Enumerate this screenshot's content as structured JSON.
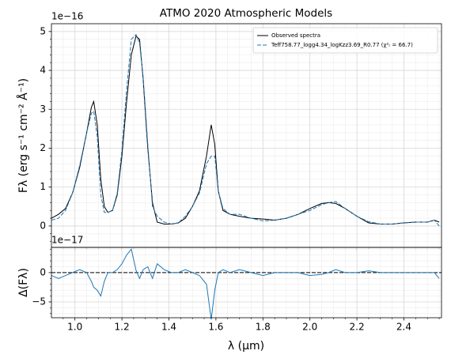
{
  "chart_data": {
    "type": "line",
    "title": "ATMO 2020 Atmospheric Models",
    "xlabel": "λ (μm)",
    "x": [
      0.9,
      0.93,
      0.96,
      0.99,
      1.02,
      1.05,
      1.07,
      1.08,
      1.095,
      1.11,
      1.125,
      1.14,
      1.16,
      1.18,
      1.2,
      1.22,
      1.24,
      1.26,
      1.275,
      1.29,
      1.31,
      1.33,
      1.35,
      1.38,
      1.41,
      1.44,
      1.47,
      1.5,
      1.53,
      1.56,
      1.58,
      1.595,
      1.61,
      1.63,
      1.66,
      1.7,
      1.75,
      1.8,
      1.85,
      1.9,
      1.95,
      2.0,
      2.05,
      2.08,
      2.11,
      2.15,
      2.2,
      2.25,
      2.3,
      2.35,
      2.4,
      2.45,
      2.5,
      2.53,
      2.55
    ],
    "xlim": [
      0.9,
      2.56
    ],
    "xticks": [
      {
        "value": 1,
        "label": "1.0"
      },
      1.2,
      1.4,
      1.6,
      1.8,
      {
        "value": 2,
        "label": "2.0"
      },
      2.2,
      2.4
    ],
    "xminorticks": [
      0.95,
      1.05,
      1.1,
      1.15,
      1.25,
      1.3,
      1.35,
      1.45,
      1.5,
      1.55,
      1.65,
      1.7,
      1.75,
      1.85,
      1.9,
      1.95,
      2.05,
      2.1,
      2.15,
      2.25,
      2.3,
      2.35,
      2.45,
      2.5,
      2.55
    ],
    "grid": true,
    "panels": [
      {
        "ylabel": "Fλ (erg s⁻¹ cm⁻² Å⁻¹)",
        "offset_label": "1e−16",
        "ylim": [
          -0.55,
          5.2
        ],
        "yticks": [
          0,
          1,
          2,
          3,
          4,
          5
        ],
        "yminorticks": [
          -0.4,
          -0.2,
          0.2,
          0.4,
          0.6,
          0.8,
          1.2,
          1.4,
          1.6,
          1.8,
          2.2,
          2.4,
          2.6,
          2.8,
          3.2,
          3.4,
          3.6,
          3.8,
          4.2,
          4.4,
          4.6,
          4.8
        ],
        "legend": "upper right",
        "series": [
          {
            "name": "Observed spectra",
            "color": "#000000",
            "linestyle": "solid",
            "values": [
              0.2,
              0.3,
              0.45,
              0.85,
              1.5,
              2.4,
              3.05,
              3.2,
              2.6,
              1.2,
              0.5,
              0.35,
              0.4,
              0.8,
              1.8,
              3.2,
              4.4,
              4.88,
              4.8,
              3.8,
              2.0,
              0.6,
              0.1,
              0.05,
              0.05,
              0.08,
              0.2,
              0.5,
              0.9,
              1.8,
              2.6,
              2.1,
              0.9,
              0.4,
              0.3,
              0.25,
              0.2,
              0.18,
              0.15,
              0.2,
              0.3,
              0.45,
              0.58,
              0.6,
              0.58,
              0.45,
              0.25,
              0.08,
              0.05,
              0.05,
              0.08,
              0.1,
              0.1,
              0.15,
              0.1
            ]
          },
          {
            "name": "Teff758.77_logg4.34_logKzz3.69_R0.77 (χ²ᵣ = 66.7)",
            "color": "#1f77b4",
            "linestyle": "dashed",
            "values": [
              0.15,
              0.2,
              0.4,
              0.85,
              1.55,
              2.4,
              2.9,
              2.95,
              2.3,
              0.8,
              0.35,
              0.35,
              0.4,
              0.85,
              1.95,
              3.5,
              4.8,
              4.92,
              4.7,
              3.85,
              2.1,
              0.5,
              0.25,
              0.1,
              0.05,
              0.08,
              0.25,
              0.5,
              0.85,
              1.6,
              1.8,
              1.8,
              0.9,
              0.45,
              0.3,
              0.3,
              0.2,
              0.13,
              0.15,
              0.2,
              0.3,
              0.4,
              0.55,
              0.6,
              0.63,
              0.45,
              0.25,
              0.11,
              0.05,
              0.05,
              0.08,
              0.1,
              0.1,
              0.15,
              0.0
            ]
          }
        ]
      },
      {
        "ylabel": "Δ(Fλ)",
        "offset_label": "1e−17",
        "ylim": [
          -7.7,
          4.3
        ],
        "yticks": [
          {
            "value": -5,
            "label": "−5"
          },
          0
        ],
        "yminorticks": [
          -7,
          -6,
          -4,
          -3,
          -2,
          -1,
          1,
          2,
          3,
          4
        ],
        "hline": {
          "value": 0,
          "color": "#000000",
          "linestyle": "dashed"
        },
        "series": [
          {
            "color": "#1f77b4",
            "linestyle": "solid",
            "values": [
              -0.5,
              -1,
              -0.5,
              0,
              0.5,
              0,
              -1.5,
              -2.5,
              -3,
              -4,
              -1.5,
              0,
              0,
              0.5,
              1.5,
              3,
              4,
              0.4,
              -1,
              0.5,
              1,
              -1,
              1.5,
              0.5,
              0,
              0,
              0.5,
              0,
              -0.5,
              -2,
              -8,
              -3,
              0,
              0.5,
              0,
              0.5,
              0,
              -0.5,
              0,
              0,
              0,
              -0.5,
              -0.3,
              0,
              0.5,
              0,
              0,
              0.3,
              0,
              0,
              0,
              0,
              0,
              0,
              -1
            ]
          }
        ]
      }
    ]
  }
}
